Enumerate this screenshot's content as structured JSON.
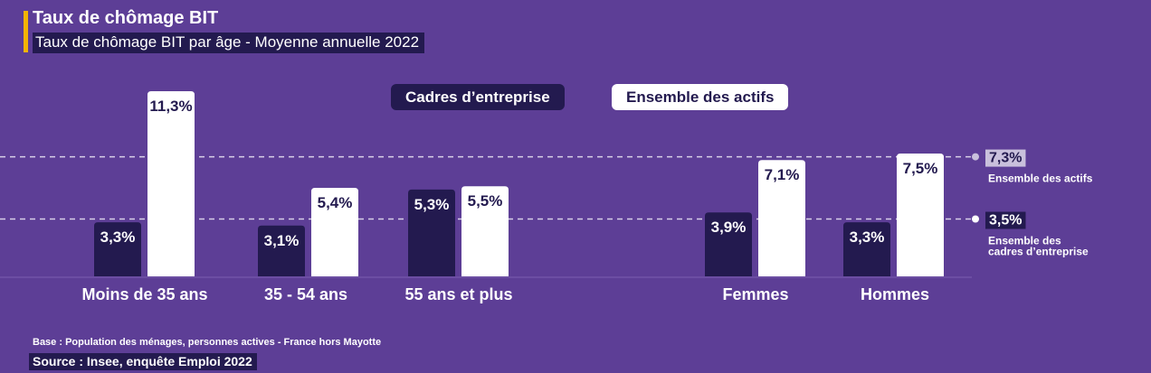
{
  "header": {
    "title": "Taux de chômage BIT",
    "subtitle": "Taux de chômage BIT par âge - Moyenne annuelle 2022"
  },
  "legend": {
    "series_a": "Cadres d’entreprise",
    "series_b": "Ensemble des actifs"
  },
  "colors": {
    "background": "#5d3e96",
    "series_a": "#231a4f",
    "series_b": "#ffffff",
    "accent": "#f4b400",
    "reference_line": "#d8d0e8"
  },
  "chart_data": {
    "type": "bar",
    "categories": [
      "Moins de 35 ans",
      "35 - 54 ans",
      "55 ans et plus",
      "Femmes",
      "Hommes"
    ],
    "series": [
      {
        "name": "Cadres d’entreprise",
        "values": [
          3.3,
          3.1,
          5.3,
          3.9,
          3.3
        ],
        "labels": [
          "3,3%",
          "3,1%",
          "5,3%",
          "3,9%",
          "3,3%"
        ]
      },
      {
        "name": "Ensemble des actifs",
        "values": [
          11.3,
          5.4,
          5.5,
          7.1,
          7.5
        ],
        "labels": [
          "11,3%",
          "5,4%",
          "5,5%",
          "7,1%",
          "7,5%"
        ]
      }
    ],
    "reference_lines": [
      {
        "value": 7.3,
        "label": "7,3%",
        "caption_lines": [
          "Ensemble des actifs"
        ]
      },
      {
        "value": 3.5,
        "label": "3,5%",
        "caption_lines": [
          "Ensemble des",
          "cadres d’entreprise"
        ]
      }
    ],
    "ylim": [
      0,
      11.3
    ],
    "grid": false
  },
  "footer": {
    "base": "Base : Population des ménages, personnes actives - France hors Mayotte",
    "source": "Source : Insee, enquête Emploi 2022"
  }
}
